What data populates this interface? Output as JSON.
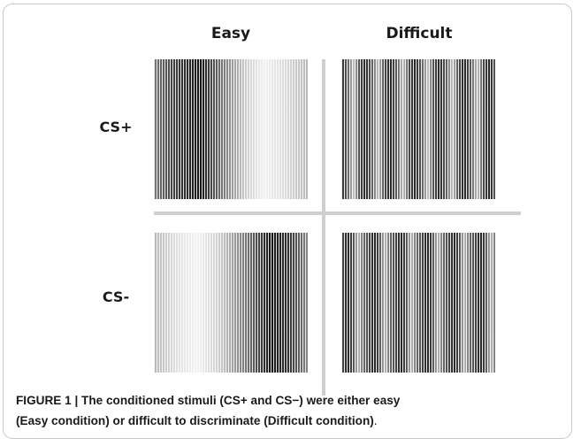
{
  "columns": {
    "easy": "Easy",
    "difficult": "Difficult"
  },
  "rows": {
    "cs_plus": "CS+",
    "cs_minus": "CS-"
  },
  "caption": {
    "line1": "FIGURE 1 | The conditioned stimuli (CS+ and CS−) were either easy",
    "line2": "(Easy condition) or difficult to discriminate (Difficult condition)",
    "period": "."
  }
}
